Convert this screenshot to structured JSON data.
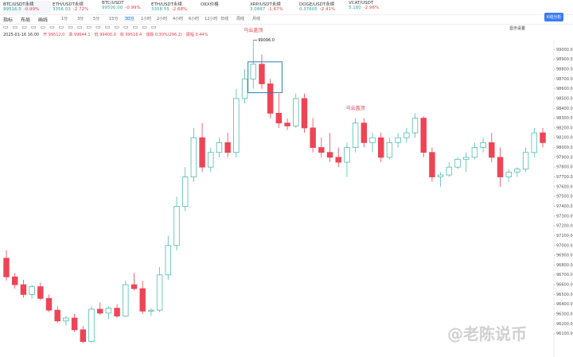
{
  "tabs": [
    {
      "name": "BTC/USDT永续",
      "price": "99516.5",
      "change": "-0.99%"
    },
    {
      "name": "ETH/USDT永续",
      "price": "3356.03",
      "change": "-2.72%"
    },
    {
      "name": "BTC/USDT",
      "price": "99500.00",
      "change": "-0.99%"
    },
    {
      "name": "ETH/USDT永续",
      "price": "3358.55",
      "change": "-2.68%"
    },
    {
      "name": "OKX价格",
      "price": "",
      "change": ""
    },
    {
      "name": "XRP/USDT永续",
      "price": "3.0887",
      "change": "-1.67%"
    },
    {
      "name": "DOGE/USDT永续",
      "price": "0.37605",
      "change": "-2.41%"
    },
    {
      "name": "VCAT/USDT",
      "price": "5.180",
      "change": "-2.96%"
    }
  ],
  "toolbar": {
    "tools": [
      "指标",
      "布局",
      "画线"
    ],
    "intervals": [
      "1分",
      "3分",
      "5分",
      "15分",
      "30分",
      "1小时",
      "2小时",
      "4小时",
      "6小时",
      "12小时",
      "日线",
      "周线",
      "月线"
    ],
    "active": 4,
    "button": "K线分析",
    "settings": "显示设置"
  },
  "info": {
    "time": "2025-01-16 16:00",
    "open": "开 99512.0",
    "high": "高 99644.1",
    "low": "低 99400.0",
    "close": "收 99516.4",
    "change": "涨跌 0.30%(296.2)",
    "amp": "振幅 0.44%"
  },
  "watermark": "@老陈说币",
  "chart_data": {
    "type": "candlestick",
    "up_color": "#4fbdb0",
    "down_color": "#ee4455",
    "ylim": [
      96000,
      99100
    ],
    "yticks": [
      {
        "value": 96100,
        "label": "96100.0"
      },
      {
        "value": 96200,
        "label": "96200.0"
      },
      {
        "value": 96300,
        "label": "96300.0"
      },
      {
        "value": 96400,
        "label": "96400.0"
      },
      {
        "value": 96500,
        "label": "96500.0"
      },
      {
        "value": 96600,
        "label": "96600.0"
      },
      {
        "value": 96700,
        "label": "96700.0"
      },
      {
        "value": 96800,
        "label": "96800.0"
      },
      {
        "value": 96900,
        "label": "96900.0"
      },
      {
        "value": 97000,
        "label": "97000.0"
      },
      {
        "value": 97100,
        "label": "97100.0"
      },
      {
        "value": 97200,
        "label": "97200.0"
      },
      {
        "value": 97300,
        "label": "97300.0"
      },
      {
        "value": 97400,
        "label": "97400.0"
      },
      {
        "value": 97500,
        "label": "97500.0"
      },
      {
        "value": 97600,
        "label": "97600.0"
      },
      {
        "value": 97700,
        "label": "97700.0"
      },
      {
        "value": 97800,
        "label": "97800.0"
      },
      {
        "value": 97900,
        "label": "97900.0"
      },
      {
        "value": 98000,
        "label": "98000.0"
      },
      {
        "value": 98100,
        "label": "98100.0"
      },
      {
        "value": 98200,
        "label": "98200.0"
      },
      {
        "value": 98300,
        "label": "98300.0"
      },
      {
        "value": 98400,
        "label": "98400.0"
      },
      {
        "value": 98500,
        "label": "98500.0"
      },
      {
        "value": 98600,
        "label": "98600.0"
      },
      {
        "value": 98700,
        "label": "98700.0"
      },
      {
        "value": 98800,
        "label": "98800.0"
      },
      {
        "value": 98900,
        "label": "98900.0"
      },
      {
        "value": 99000,
        "label": "99000.0"
      }
    ],
    "annotations": [
      {
        "text": "乌云盖顶",
        "index": 30
      },
      {
        "text": "乌云盖顶",
        "index": 42
      }
    ],
    "peak_label": "99096.0",
    "ohlc": [
      [
        96870,
        96950,
        96640,
        96680
      ],
      [
        96680,
        96720,
        96560,
        96600
      ],
      [
        96600,
        96650,
        96470,
        96500
      ],
      [
        96500,
        96600,
        96460,
        96580
      ],
      [
        96580,
        96620,
        96440,
        96460
      ],
      [
        96460,
        96500,
        96320,
        96340
      ],
      [
        96340,
        96380,
        96210,
        96230
      ],
      [
        96230,
        96280,
        96180,
        96260
      ],
      [
        96260,
        96300,
        96120,
        96140
      ],
      [
        96140,
        96180,
        96000,
        96020
      ],
      [
        96020,
        96380,
        96010,
        96350
      ],
      [
        96350,
        96420,
        96290,
        96310
      ],
      [
        96310,
        96380,
        96250,
        96360
      ],
      [
        96360,
        96400,
        96260,
        96280
      ],
      [
        96280,
        96640,
        96270,
        96600
      ],
      [
        96600,
        96720,
        96540,
        96560
      ],
      [
        96560,
        96640,
        96300,
        96330
      ],
      [
        96330,
        96360,
        96280,
        96340
      ],
      [
        96340,
        96780,
        96320,
        96700
      ],
      [
        96700,
        97100,
        96650,
        97000
      ],
      [
        97000,
        97500,
        96950,
        97400
      ],
      [
        97400,
        97800,
        97350,
        97700
      ],
      [
        97700,
        98200,
        97650,
        98100
      ],
      [
        98100,
        98250,
        97750,
        97800
      ],
      [
        97800,
        98000,
        97750,
        97950
      ],
      [
        97950,
        98100,
        97900,
        98050
      ],
      [
        98050,
        98150,
        97900,
        97950
      ],
      [
        97950,
        98600,
        97900,
        98500
      ],
      [
        98500,
        98800,
        98450,
        98700
      ],
      [
        98700,
        99096,
        98600,
        98850
      ],
      [
        98850,
        98950,
        98600,
        98650
      ],
      [
        98650,
        98700,
        98300,
        98350
      ],
      [
        98350,
        98550,
        98200,
        98250
      ],
      [
        98250,
        98300,
        98180,
        98220
      ],
      [
        98220,
        98550,
        98200,
        98500
      ],
      [
        98500,
        98550,
        98150,
        98200
      ],
      [
        98200,
        98300,
        97950,
        98000
      ],
      [
        98000,
        98100,
        97900,
        97950
      ],
      [
        97950,
        98150,
        97850,
        97900
      ],
      [
        97900,
        98000,
        97800,
        97850
      ],
      [
        97850,
        98050,
        97700,
        98000
      ],
      [
        98000,
        98300,
        97950,
        98250
      ],
      [
        98250,
        98300,
        98000,
        98050
      ],
      [
        98050,
        98150,
        97950,
        98100
      ],
      [
        98100,
        98150,
        97850,
        97900
      ],
      [
        97900,
        98100,
        97880,
        98050
      ],
      [
        98050,
        98150,
        98000,
        98100
      ],
      [
        98100,
        98200,
        98050,
        98150
      ],
      [
        98150,
        98350,
        98100,
        98300
      ],
      [
        98300,
        98320,
        97900,
        97950
      ],
      [
        97950,
        98000,
        97650,
        97700
      ],
      [
        97700,
        97750,
        97600,
        97720
      ],
      [
        97720,
        97850,
        97700,
        97800
      ],
      [
        97800,
        97900,
        97780,
        97880
      ],
      [
        97880,
        97950,
        97750,
        97900
      ],
      [
        97900,
        98050,
        97880,
        98000
      ],
      [
        98000,
        98100,
        97950,
        98050
      ],
      [
        98050,
        98150,
        97850,
        97900
      ],
      [
        97900,
        98000,
        97600,
        97700
      ],
      [
        97700,
        97780,
        97650,
        97750
      ],
      [
        97750,
        97800,
        97700,
        97780
      ],
      [
        97780,
        98000,
        97750,
        97950
      ],
      [
        97950,
        98200,
        97900,
        98150
      ],
      [
        98150,
        98200,
        98000,
        98050
      ]
    ]
  }
}
